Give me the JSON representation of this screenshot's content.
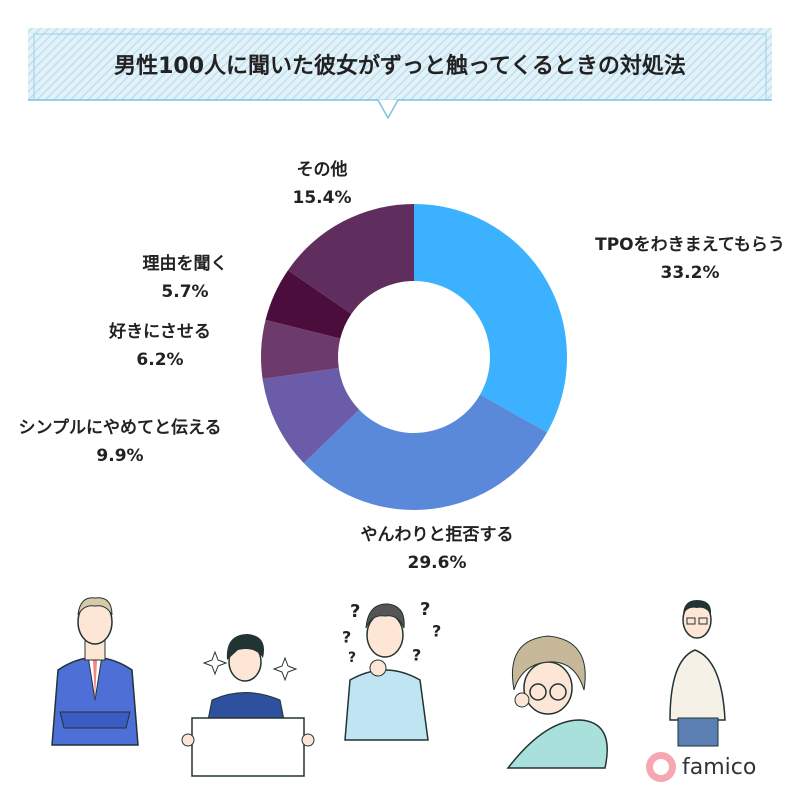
{
  "chart_data": {
    "type": "donut",
    "title": "男性100人に聞いた彼女がずっと触ってくるときの対処法",
    "categories": [
      "TPOをわきまえてもらう",
      "やんわりと拒否する",
      "シンプルにやめてと伝える",
      "好きにさせる",
      "理由を聞く",
      "その他"
    ],
    "values": [
      33.2,
      29.6,
      9.9,
      6.2,
      5.7,
      15.4
    ],
    "value_labels": [
      "33.2%",
      "29.6%",
      "9.9%",
      "6.2%",
      "5.7%",
      "15.4%"
    ],
    "colors": [
      "#3cb1ff",
      "#5b89d9",
      "#6a5ca9",
      "#6c3b6b",
      "#4b0d3b",
      "#5f2e5e"
    ]
  },
  "brand": "famico"
}
